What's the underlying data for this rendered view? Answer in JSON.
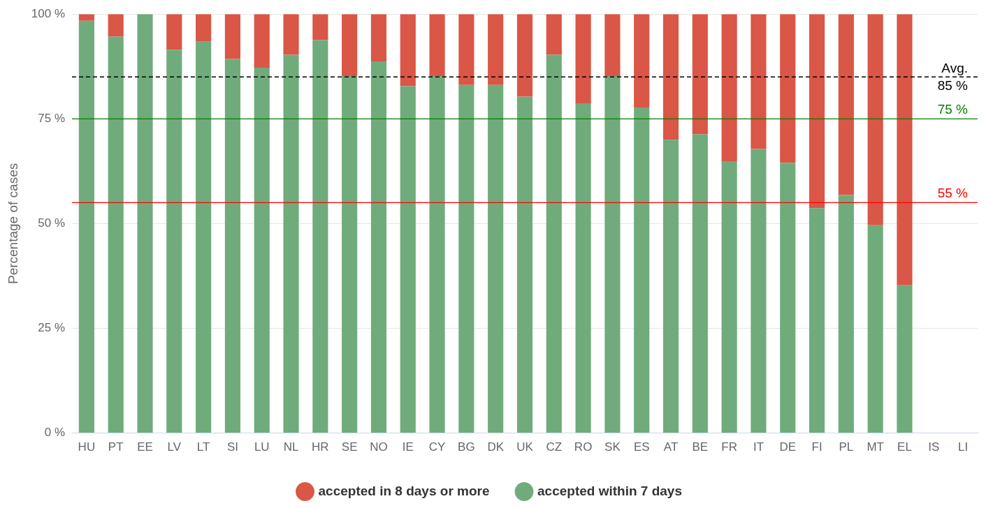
{
  "chart_data": {
    "type": "bar",
    "stacked": true,
    "ylabel": "Percentage of cases",
    "categories": [
      "HU",
      "PT",
      "EE",
      "LV",
      "LT",
      "SI",
      "LU",
      "NL",
      "HR",
      "SE",
      "NO",
      "IE",
      "CY",
      "BG",
      "DK",
      "UK",
      "CZ",
      "RO",
      "SK",
      "ES",
      "AT",
      "BE",
      "FR",
      "IT",
      "DE",
      "FI",
      "PL",
      "MT",
      "EL",
      "IS",
      "LI"
    ],
    "series": [
      {
        "name": "accepted within 7 days",
        "color": "#70ab7c",
        "values": [
          98.4,
          94.6,
          100,
          91.5,
          93.4,
          89.3,
          87.2,
          90.3,
          93.8,
          85.2,
          88.7,
          82.8,
          85.2,
          83.1,
          83.1,
          80.3,
          90.3,
          78.7,
          85.2,
          77.7,
          70,
          71.3,
          64.9,
          67.8,
          64.5,
          53.7,
          56.8,
          49.6,
          35.3,
          null,
          null
        ]
      },
      {
        "name": "accepted in 8 days or more",
        "color": "#da5646",
        "values": [
          1.6,
          5.4,
          0,
          8.5,
          6.6,
          10.7,
          12.8,
          9.7,
          6.2,
          14.8,
          11.3,
          17.2,
          14.8,
          16.9,
          16.9,
          19.7,
          9.7,
          21.3,
          14.8,
          22.3,
          30,
          28.7,
          35.1,
          32.2,
          35.5,
          46.3,
          43.2,
          50.4,
          64.7,
          null,
          null
        ]
      }
    ],
    "ylim": [
      0,
      100
    ],
    "yticks": [
      {
        "value": 0,
        "label": "0 %"
      },
      {
        "value": 25,
        "label": "25 %"
      },
      {
        "value": 50,
        "label": "50 %"
      },
      {
        "value": 75,
        "label": "75 %"
      },
      {
        "value": 100,
        "label": "100 %"
      }
    ],
    "grid": "y",
    "legend": "bottom",
    "ref_lines": [
      {
        "axis": "y",
        "value": 85,
        "label": "Avg.\n85 %",
        "color": "#000000",
        "line_style": "dashed"
      },
      {
        "axis": "y",
        "value": 75,
        "label": "75 %",
        "color": "#008000",
        "line_style": "solid"
      },
      {
        "axis": "y",
        "value": 55,
        "label": "55 %",
        "color": "#ff0000",
        "line_style": "solid"
      }
    ]
  }
}
